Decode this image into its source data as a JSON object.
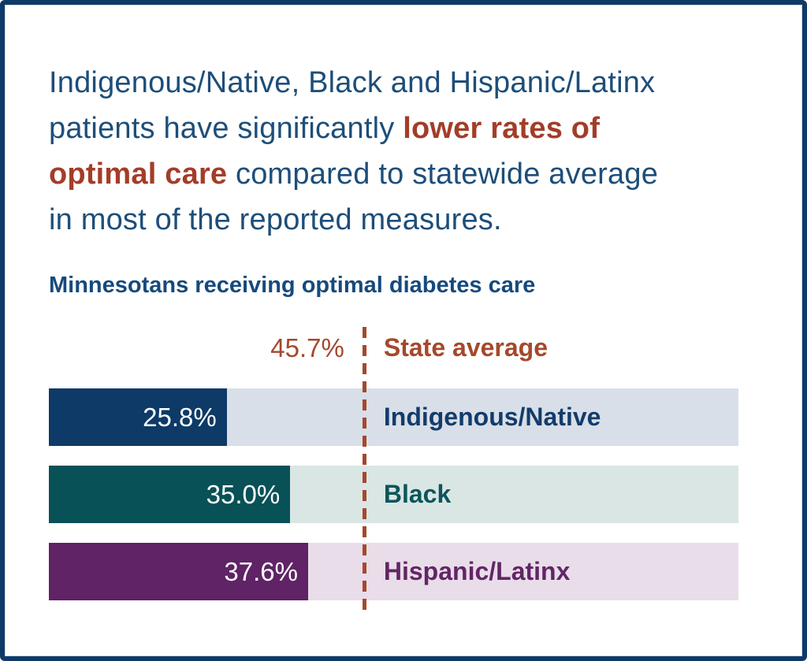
{
  "headline": {
    "line1": "Indigenous/Native, Black and Hispanic/Latinx",
    "line2_normal": "patients have significantly ",
    "line2_em": "lower rates of",
    "line3_em": "optimal care",
    "line3_normal": " compared to statewide average",
    "line4": "in most of the reported measures."
  },
  "colors": {
    "frame_border": "#0e3a67",
    "headline_navy": "#1d4e79",
    "headline_accent": "#a33d28",
    "reference_accent": "#a5482c",
    "bar_fills": [
      "#0d3a66",
      "#085157",
      "#5f2366"
    ],
    "bar_tracks": [
      "#d9dfe8",
      "#d9e6e4",
      "#e8dde9"
    ],
    "category_label_colors": [
      "#123c6b",
      "#0d555c",
      "#632566"
    ]
  },
  "chart_data": {
    "type": "bar",
    "orientation": "horizontal",
    "title": "Minnesotans receiving optimal diabetes care",
    "unit": "percent",
    "xlim": [
      0,
      100
    ],
    "grid": false,
    "legend": false,
    "reference_line": {
      "label": "State average",
      "value": 45.7,
      "display": "45.7%",
      "style": "vertical dashed line"
    },
    "categories": [
      "Indigenous/Native",
      "Black",
      "Hispanic/Latinx"
    ],
    "values": [
      25.8,
      35.0,
      37.6
    ],
    "value_labels": [
      "25.8%",
      "35.0%",
      "37.6%"
    ]
  }
}
